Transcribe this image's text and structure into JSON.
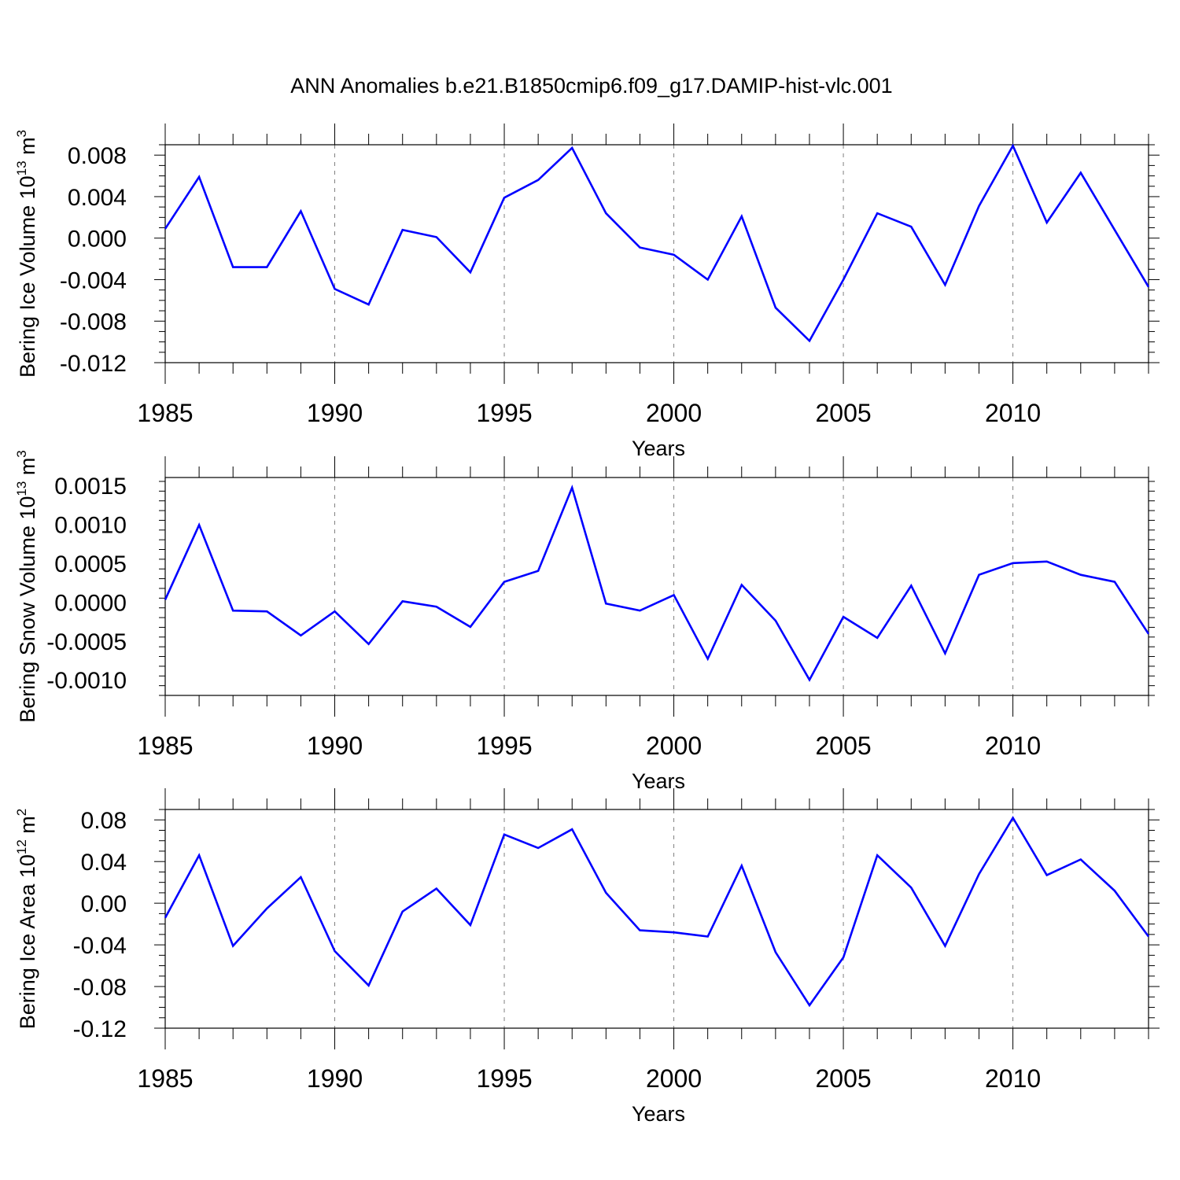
{
  "title": "ANN Anomalies b.e21.B1850cmip6.f09_g17.DAMIP-hist-vlc.001",
  "colors": {
    "line": "#0000ff",
    "axis": "#000000",
    "grid": "#808080"
  },
  "chart_data": [
    {
      "type": "line",
      "ylabel": "Bering Ice Volume 10",
      "ylabel_exp": "13",
      "ylabel_unit": " m",
      "ylabel_unit_exp": "3",
      "xlabel": "Years",
      "xlim": [
        1985,
        2014
      ],
      "ylim": [
        -0.012,
        0.009
      ],
      "yticks": [
        -0.012,
        -0.008,
        -0.004,
        0.0,
        0.004,
        0.008
      ],
      "ytick_labels": [
        "-0.012",
        "-0.008",
        "-0.004",
        "0.000",
        "0.004",
        "0.008"
      ],
      "xticks": [
        1985,
        1990,
        1995,
        2000,
        2005,
        2010
      ],
      "xtick_labels": [
        "1985",
        "1990",
        "1995",
        "2000",
        "2005",
        "2010"
      ],
      "x": [
        1985,
        1986,
        1987,
        1988,
        1989,
        1990,
        1991,
        1992,
        1993,
        1994,
        1995,
        1996,
        1997,
        1998,
        1999,
        2000,
        2001,
        2002,
        2003,
        2004,
        2005,
        2006,
        2007,
        2008,
        2009,
        2010,
        2011,
        2012,
        2013,
        2014
      ],
      "values": [
        0.0009,
        0.0059,
        -0.0028,
        -0.0028,
        0.0026,
        -0.0049,
        -0.0064,
        0.0008,
        0.0001,
        -0.0033,
        0.0039,
        0.0056,
        0.0087,
        0.0024,
        -0.0009,
        -0.0016,
        -0.004,
        0.0021,
        -0.0067,
        -0.0099,
        -0.004,
        0.0024,
        0.0011,
        -0.0045,
        0.0031,
        0.0089,
        0.0015,
        0.0063,
        0.0008,
        -0.0047
      ]
    },
    {
      "type": "line",
      "ylabel": "Bering Snow Volume 10",
      "ylabel_exp": "13",
      "ylabel_unit": " m",
      "ylabel_unit_exp": "3",
      "xlabel": "Years",
      "xlim": [
        1985,
        2014
      ],
      "ylim": [
        -0.0012,
        0.0016
      ],
      "yticks": [
        -0.001,
        -0.0005,
        0.0,
        0.0005,
        0.001,
        0.0015
      ],
      "ytick_labels": [
        "-0.0010",
        "-0.0005",
        "0.0000",
        "0.0005",
        "0.0010",
        "0.0015"
      ],
      "xticks": [
        1985,
        1990,
        1995,
        2000,
        2005,
        2010
      ],
      "xtick_labels": [
        "1985",
        "1990",
        "1995",
        "2000",
        "2005",
        "2010"
      ],
      "x": [
        1985,
        1986,
        1987,
        1988,
        1989,
        1990,
        1991,
        1992,
        1993,
        1994,
        1995,
        1996,
        1997,
        1998,
        1999,
        2000,
        2001,
        2002,
        2003,
        2004,
        2005,
        2006,
        2007,
        2008,
        2009,
        2010,
        2011,
        2012,
        2013,
        2014
      ],
      "values": [
        3e-05,
        0.00099,
        -0.00011,
        -0.00012,
        -0.00043,
        -0.00012,
        -0.00054,
        1e-05,
        -6e-05,
        -0.00032,
        0.00026,
        0.0004,
        0.00147,
        -2e-05,
        -0.00011,
        9e-05,
        -0.00073,
        0.00022,
        -0.00024,
        -0.001,
        -0.00019,
        -0.00046,
        0.00021,
        -0.00066,
        0.00035,
        0.0005,
        0.00052,
        0.00035,
        0.00026,
        -0.00041
      ]
    },
    {
      "type": "line",
      "ylabel": "Bering Ice Area 10",
      "ylabel_exp": "12",
      "ylabel_unit": " m",
      "ylabel_unit_exp": "2",
      "xlabel": "Years",
      "xlim": [
        1985,
        2014
      ],
      "ylim": [
        -0.12,
        0.09
      ],
      "yticks": [
        -0.12,
        -0.08,
        -0.04,
        0.0,
        0.04,
        0.08
      ],
      "ytick_labels": [
        "-0.12",
        "-0.08",
        "-0.04",
        "0.00",
        "0.04",
        "0.08"
      ],
      "xticks": [
        1985,
        1990,
        1995,
        2000,
        2005,
        2010
      ],
      "xtick_labels": [
        "1985",
        "1990",
        "1995",
        "2000",
        "2005",
        "2010"
      ],
      "x": [
        1985,
        1986,
        1987,
        1988,
        1989,
        1990,
        1991,
        1992,
        1993,
        1994,
        1995,
        1996,
        1997,
        1998,
        1999,
        2000,
        2001,
        2002,
        2003,
        2004,
        2005,
        2006,
        2007,
        2008,
        2009,
        2010,
        2011,
        2012,
        2013,
        2014
      ],
      "values": [
        -0.014,
        0.046,
        -0.041,
        -0.005,
        0.025,
        -0.046,
        -0.079,
        -0.008,
        0.014,
        -0.021,
        0.066,
        0.053,
        0.071,
        0.01,
        -0.026,
        -0.028,
        -0.032,
        0.036,
        -0.047,
        -0.098,
        -0.052,
        0.046,
        0.015,
        -0.041,
        0.028,
        0.082,
        0.027,
        0.042,
        0.012,
        -0.032
      ]
    }
  ]
}
